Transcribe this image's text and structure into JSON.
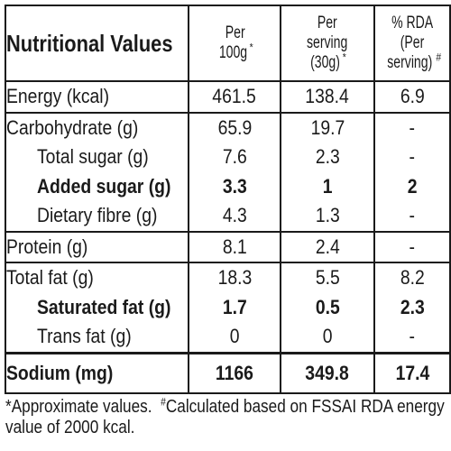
{
  "header": {
    "title": "Nutritional Values",
    "col1": {
      "line1": "Per",
      "line2": "100g",
      "mark": "*"
    },
    "col2": {
      "line1": "Per",
      "line2": "serving",
      "line3": "(30g)",
      "mark": "*"
    },
    "col3": {
      "line1": "% RDA",
      "line2": "(Per",
      "line3": "serving)",
      "mark": "#"
    }
  },
  "rows": [
    {
      "name": "Energy (kcal)",
      "per100": "461.5",
      "serving": "138.4",
      "rda": "6.9"
    },
    {
      "name": "Carbohydrate (g)",
      "per100": "65.9",
      "serving": "19.7",
      "rda": "-"
    },
    {
      "name": "Total sugar (g)",
      "per100": "7.6",
      "serving": "2.3",
      "rda": "-"
    },
    {
      "name": "Added sugar (g)",
      "per100": "3.3",
      "serving": "1",
      "rda": "2"
    },
    {
      "name": "Dietary fibre (g)",
      "per100": "4.3",
      "serving": "1.3",
      "rda": "-"
    },
    {
      "name": "Protein (g)",
      "per100": "8.1",
      "serving": "2.4",
      "rda": "-"
    },
    {
      "name": "Total fat (g)",
      "per100": "18.3",
      "serving": "5.5",
      "rda": "8.2"
    },
    {
      "name": "Saturated fat (g)",
      "per100": "1.7",
      "serving": "0.5",
      "rda": "2.3"
    },
    {
      "name": "Trans fat (g)",
      "per100": "0",
      "serving": "0",
      "rda": "-"
    }
  ],
  "sodium": {
    "name": "Sodium (mg)",
    "per100": "1166",
    "serving": "349.8",
    "rda": "17.4"
  },
  "footnote": {
    "mark1": "*",
    "text1": "Approximate values.",
    "mark2": "#",
    "text2": "Calculated based on FSSAI RDA energy value of 2000 kcal."
  }
}
